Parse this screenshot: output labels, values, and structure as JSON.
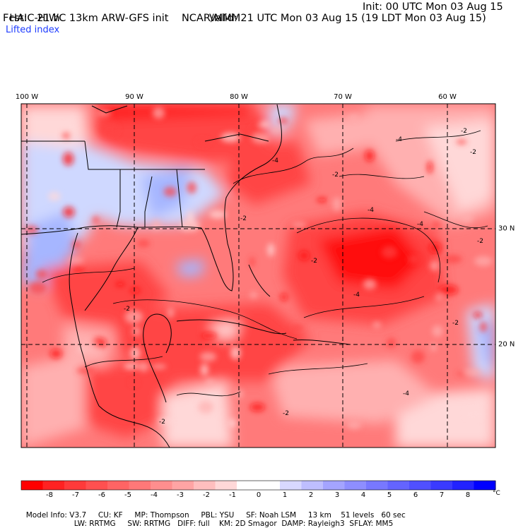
{
  "header": {
    "model_title": "HAIC-HIWC 13km ARW-GFS init",
    "org": "NCAR/MMM",
    "init": "Init: 00 UTC Mon 03 Aug 15",
    "fcst": "Fcst:   21 h",
    "valid": "Valid: 21 UTC Mon 03 Aug 15 (19 LDT Mon 03 Aug 15)",
    "field_name": "Lifted index"
  },
  "map": {
    "lon_labels": [
      "100 W",
      "90 W",
      "80 W",
      "70 W",
      "60 W"
    ],
    "lat_labels": [
      "30 N",
      "20 N"
    ],
    "contour_labels": [
      "-2",
      "-4",
      "-2",
      "-4",
      "-2",
      "-4",
      "-2",
      "-2",
      "-4",
      "-2",
      "-4",
      "-2",
      "-2",
      "-2",
      "-2",
      "-4"
    ],
    "colors": {
      "deep_red": "#ff0a0a",
      "red": "#ff4545",
      "mid_red": "#ff7a7a",
      "light_red": "#ffb0b0",
      "pale_red": "#ffd8d8",
      "white": "#ffffff",
      "pale_blue": "#cfd8ff",
      "light_blue": "#a6b6ff",
      "blue": "#7d8fff",
      "contour": "#000000",
      "coast": "#000000",
      "grid": "#000000"
    }
  },
  "colorbar": {
    "ticks": [
      "-8",
      "-7",
      "-6",
      "-5",
      "-4",
      "-3",
      "-2",
      "-1",
      "0",
      "1",
      "2",
      "3",
      "4",
      "5",
      "6",
      "7",
      "8"
    ],
    "unit": "°C",
    "colors": [
      "#ff0000",
      "#ff2222",
      "#ff3a3a",
      "#ff5050",
      "#ff6464",
      "#ff7878",
      "#ff8e8e",
      "#ffa4a4",
      "#ffbebe",
      "#ffd8d8",
      "#ffffff",
      "#ffffff",
      "#d8d8ff",
      "#bebeff",
      "#a4a4ff",
      "#8e8eff",
      "#7878ff",
      "#6464ff",
      "#5050ff",
      "#3a3aff",
      "#2222ff",
      "#0000ff"
    ]
  },
  "model_info": {
    "line1": [
      "Model Info: V3.7",
      "CU: KF",
      "MP: Thompson",
      "PBL: YSU",
      "SF: Noah LSM",
      "13 km",
      "51 levels",
      "60 sec"
    ],
    "line2": [
      "LW: RRTMG",
      "SW: RRTMG",
      "DIFF: full",
      "KM: 2D Smagor",
      "DAMP: Rayleigh3",
      "SFLAY: MM5"
    ]
  }
}
